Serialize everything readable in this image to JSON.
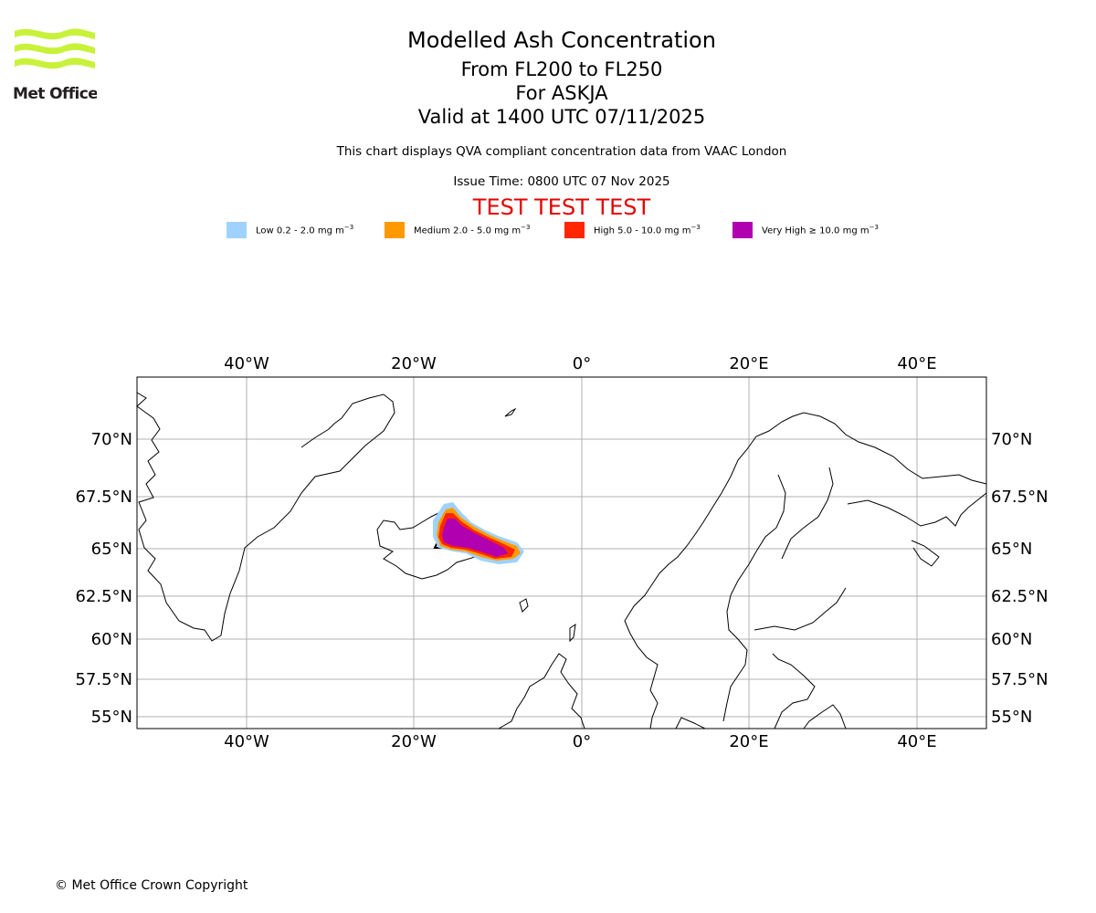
{
  "logo": {
    "text": "Met Office",
    "color": "#c8f23a"
  },
  "title": {
    "main": "Modelled Ash Concentration",
    "levels": "From FL200 to FL250",
    "volcano": "For ASKJA",
    "valid": "Valid at 1400 UTC 07/11/2025"
  },
  "info": {
    "compliance": "This chart displays QVA compliant concentration data from VAAC London",
    "issue_time": "Issue Time: 0800 UTC 07 Nov 2025",
    "test_banner": "TEST TEST TEST"
  },
  "legend": [
    {
      "label": "Low 0.2 - 2.0 mg m",
      "unit_exp": "−3",
      "color": "#a0d2ff"
    },
    {
      "label": "Medium 2.0 - 5.0 mg m",
      "unit_exp": "−3",
      "color": "#ff9900"
    },
    {
      "label": "High 5.0 - 10.0 mg m",
      "unit_exp": "−3",
      "color": "#ff2600"
    },
    {
      "label": "Very High  ≥  10.0 mg m",
      "unit_exp": "−3",
      "color": "#b000b0"
    }
  ],
  "map": {
    "longitude_ticks": [
      "40°W",
      "20°W",
      "0°",
      "20°E",
      "40°E"
    ],
    "latitude_ticks": [
      "70°N",
      "67.5°N",
      "65°N",
      "62.5°N",
      "60°N",
      "57.5°N",
      "55°N"
    ],
    "lon_range": [
      -53,
      48
    ],
    "lat_range": [
      54.5,
      73
    ]
  },
  "footer": {
    "copyright": "© Met Office Crown Copyright"
  }
}
